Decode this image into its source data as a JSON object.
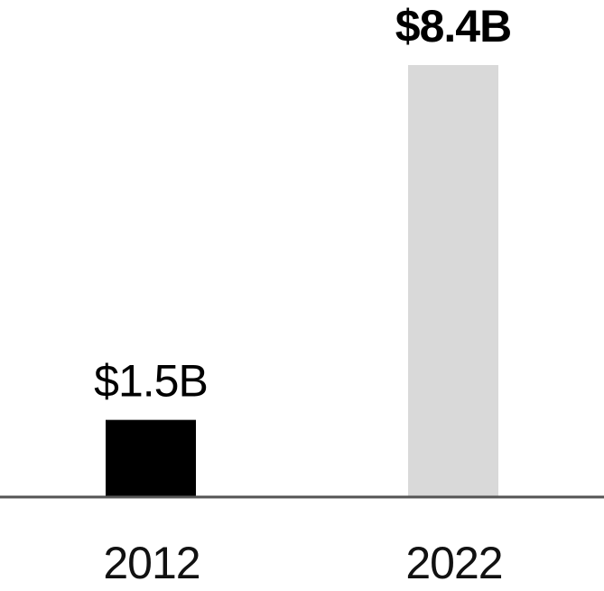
{
  "chart_data": {
    "type": "bar",
    "categories": [
      "2012",
      "2022"
    ],
    "values": [
      1.5,
      8.4
    ],
    "value_labels": [
      "$1.5B",
      "$8.4B"
    ],
    "value_label_bold": [
      false,
      true
    ],
    "colors": [
      "#000000",
      "#d9d9d9"
    ],
    "title": "",
    "xlabel": "",
    "ylabel": "",
    "ylim": [
      0,
      8.4
    ],
    "grid": false,
    "baseline_color": "#555555"
  }
}
